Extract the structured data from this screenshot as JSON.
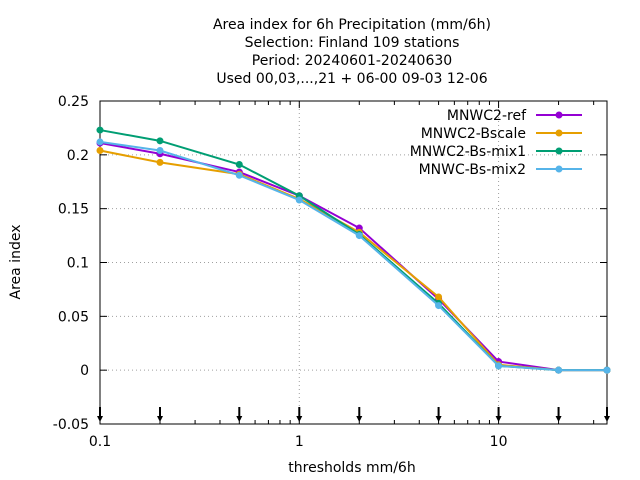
{
  "chart_data": {
    "type": "line",
    "title_lines": [
      "Area index  for 6h Precipitation (mm/6h)",
      "Selection: Finland    109 stations",
      "Period: 20240601-20240630",
      "Used 00,03,...,21 + 06-00 09-03 12-06"
    ],
    "xlabel": "thresholds mm/6h",
    "ylabel": "Area index",
    "x_scale": "log",
    "xlim": [
      0.1,
      35
    ],
    "ylim": [
      -0.05,
      0.25
    ],
    "x_ticks": [
      0.1,
      1,
      10
    ],
    "x_tick_labels": [
      "0.1",
      "1",
      "10"
    ],
    "y_ticks": [
      -0.05,
      0,
      0.05,
      0.1,
      0.15,
      0.2,
      0.25
    ],
    "y_tick_labels": [
      "-0.05",
      "0",
      "0.05",
      "0.1",
      "0.15",
      "0.2",
      "0.25"
    ],
    "grid": true,
    "legend_position": "top-right",
    "x": [
      0.1,
      0.2,
      0.5,
      1,
      2,
      5,
      10,
      20,
      35
    ],
    "series": [
      {
        "name": "MNWC2-ref",
        "color": "#9400d3",
        "values": [
          0.211,
          0.201,
          0.184,
          0.162,
          0.132,
          0.066,
          0.008,
          0.0,
          0.0
        ]
      },
      {
        "name": "MNWC2-Bscale",
        "color": "#e69f00",
        "values": [
          0.204,
          0.193,
          0.182,
          0.159,
          0.128,
          0.068,
          0.005,
          0.0,
          0.0
        ]
      },
      {
        "name": "MNWC2-Bs-mix1",
        "color": "#009e73",
        "values": [
          0.223,
          0.213,
          0.191,
          0.162,
          0.126,
          0.062,
          0.004,
          0.0,
          0.0
        ]
      },
      {
        "name": "MNWC-Bs-mix2",
        "color": "#56b4e9",
        "values": [
          0.212,
          0.204,
          0.181,
          0.158,
          0.125,
          0.06,
          0.004,
          0.0,
          0.0
        ]
      }
    ],
    "bottom_markers": [
      0.1,
      0.2,
      0.5,
      1,
      2,
      5,
      10,
      20,
      35
    ]
  }
}
